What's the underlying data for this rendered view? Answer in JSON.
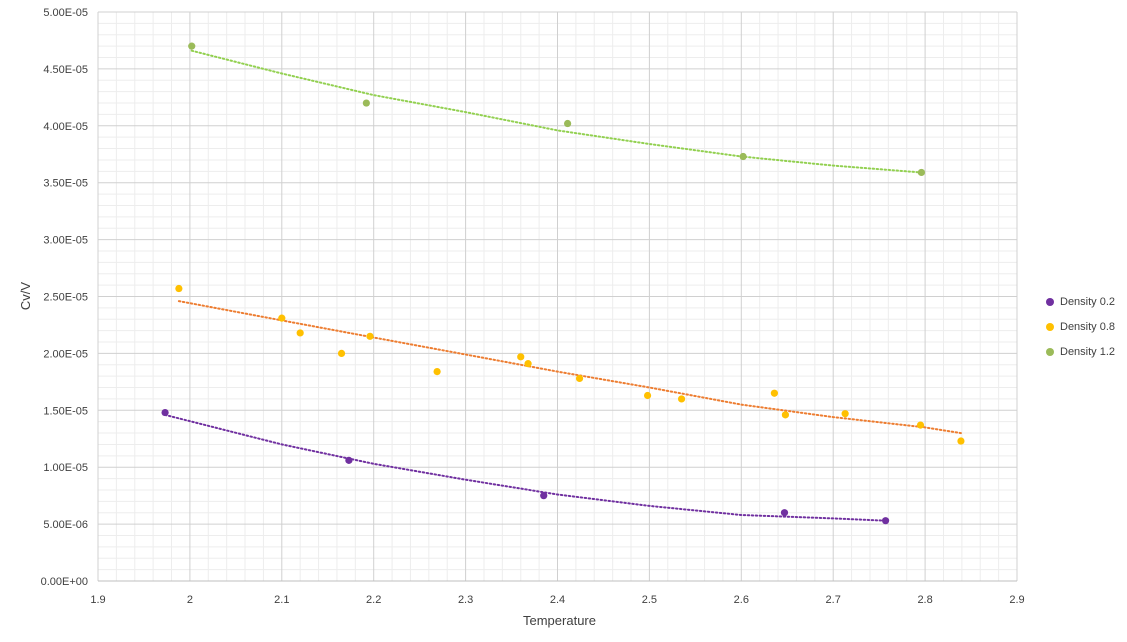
{
  "chart_data": {
    "type": "scatter",
    "title": "",
    "xlabel": "Temperature",
    "ylabel": "Cv/V",
    "xlim": [
      1.9,
      2.9
    ],
    "ylim": [
      0,
      5e-05
    ],
    "x_ticks": [
      "1.9",
      "2",
      "2.1",
      "2.2",
      "2.3",
      "2.4",
      "2.5",
      "2.6",
      "2.7",
      "2.8",
      "2.9"
    ],
    "y_ticks": [
      "0.00E+00",
      "5.00E-06",
      "1.00E-05",
      "1.50E-05",
      "2.00E-05",
      "2.50E-05",
      "3.00E-05",
      "3.50E-05",
      "4.00E-05",
      "4.50E-05",
      "5.00E-05"
    ],
    "grid": true,
    "legend_position": "right",
    "trendlines": "dotted",
    "series": [
      {
        "name": "Density 0.2",
        "color": "#7030A0",
        "trend_color": "#7030A0",
        "points": [
          {
            "x": 1.973,
            "y": 1.48e-05
          },
          {
            "x": 2.173,
            "y": 1.06e-05
          },
          {
            "x": 2.385,
            "y": 7.5e-06
          },
          {
            "x": 2.647,
            "y": 6e-06
          },
          {
            "x": 2.757,
            "y": 5.3e-06
          }
        ],
        "trend": [
          {
            "x": 1.973,
            "y": 1.46e-05
          },
          {
            "x": 2.1,
            "y": 1.2e-05
          },
          {
            "x": 2.2,
            "y": 1.03e-05
          },
          {
            "x": 2.3,
            "y": 8.9e-06
          },
          {
            "x": 2.4,
            "y": 7.6e-06
          },
          {
            "x": 2.5,
            "y": 6.6e-06
          },
          {
            "x": 2.6,
            "y": 5.8e-06
          },
          {
            "x": 2.7,
            "y": 5.5e-06
          },
          {
            "x": 2.757,
            "y": 5.3e-06
          }
        ]
      },
      {
        "name": "Density 0.8",
        "color": "#FFC000",
        "trend_color": "#ED7D31",
        "points": [
          {
            "x": 1.988,
            "y": 2.57e-05
          },
          {
            "x": 2.1,
            "y": 2.31e-05
          },
          {
            "x": 2.12,
            "y": 2.18e-05
          },
          {
            "x": 2.165,
            "y": 2e-05
          },
          {
            "x": 2.196,
            "y": 2.15e-05
          },
          {
            "x": 2.269,
            "y": 1.84e-05
          },
          {
            "x": 2.36,
            "y": 1.97e-05
          },
          {
            "x": 2.368,
            "y": 1.91e-05
          },
          {
            "x": 2.424,
            "y": 1.78e-05
          },
          {
            "x": 2.498,
            "y": 1.63e-05
          },
          {
            "x": 2.535,
            "y": 1.6e-05
          },
          {
            "x": 2.636,
            "y": 1.65e-05
          },
          {
            "x": 2.648,
            "y": 1.46e-05
          },
          {
            "x": 2.713,
            "y": 1.47e-05
          },
          {
            "x": 2.795,
            "y": 1.37e-05
          },
          {
            "x": 2.839,
            "y": 1.23e-05
          }
        ],
        "trend": [
          {
            "x": 1.988,
            "y": 2.46e-05
          },
          {
            "x": 2.1,
            "y": 2.29e-05
          },
          {
            "x": 2.2,
            "y": 2.14e-05
          },
          {
            "x": 2.3,
            "y": 1.99e-05
          },
          {
            "x": 2.4,
            "y": 1.84e-05
          },
          {
            "x": 2.5,
            "y": 1.7e-05
          },
          {
            "x": 2.6,
            "y": 1.55e-05
          },
          {
            "x": 2.7,
            "y": 1.44e-05
          },
          {
            "x": 2.8,
            "y": 1.35e-05
          },
          {
            "x": 2.839,
            "y": 1.3e-05
          }
        ]
      },
      {
        "name": "Density 1.2",
        "color": "#9BBB59",
        "trend_color": "#92D050",
        "points": [
          {
            "x": 2.002,
            "y": 4.7e-05
          },
          {
            "x": 2.192,
            "y": 4.2e-05
          },
          {
            "x": 2.411,
            "y": 4.02e-05
          },
          {
            "x": 2.602,
            "y": 3.73e-05
          },
          {
            "x": 2.796,
            "y": 3.59e-05
          }
        ],
        "trend": [
          {
            "x": 2.002,
            "y": 4.66e-05
          },
          {
            "x": 2.1,
            "y": 4.46e-05
          },
          {
            "x": 2.2,
            "y": 4.27e-05
          },
          {
            "x": 2.3,
            "y": 4.12e-05
          },
          {
            "x": 2.4,
            "y": 3.96e-05
          },
          {
            "x": 2.5,
            "y": 3.84e-05
          },
          {
            "x": 2.6,
            "y": 3.73e-05
          },
          {
            "x": 2.7,
            "y": 3.65e-05
          },
          {
            "x": 2.796,
            "y": 3.59e-05
          }
        ]
      }
    ]
  }
}
